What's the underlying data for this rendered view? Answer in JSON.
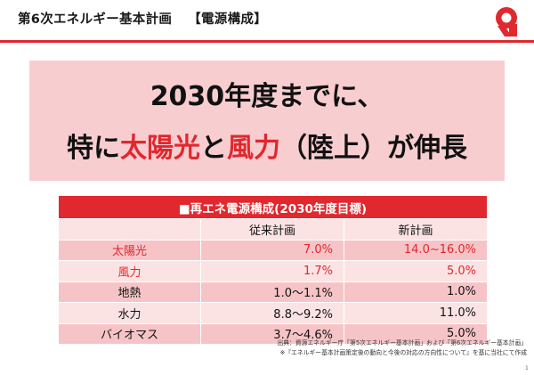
{
  "header": {
    "title": "第6次エネルギー基本計画",
    "section": "【電源構成】",
    "accent_color": "#e0282e"
  },
  "logo": {
    "icon": "brand-logo-icon"
  },
  "headline": {
    "line1": "2030年度までに、",
    "line2_parts": [
      "特に",
      "太陽光",
      "と",
      "風力",
      "（陸上）",
      "が伸長"
    ],
    "highlight_color": "#e0282e"
  },
  "table": {
    "caption": "■再エネ電源構成(2030年度目標)",
    "columns": [
      "",
      "従来計画",
      "新計画"
    ],
    "rows": [
      {
        "label": "太陽光",
        "prev": "7.0%",
        "new": "14.0~16.0%",
        "highlight": true
      },
      {
        "label": "風力",
        "prev": "1.7%",
        "new": "5.0%",
        "highlight": true
      },
      {
        "label": "地熱",
        "prev": "1.0～1.1%",
        "new": "1.0%",
        "highlight": false
      },
      {
        "label": "水力",
        "prev": "8.8～9.2%",
        "new": "11.0%",
        "highlight": false
      },
      {
        "label": "バイオマス",
        "prev": "3.7～4.6%",
        "new": "5.0%",
        "highlight": false
      }
    ]
  },
  "source": {
    "line1": "出典：資源エネルギー庁「第5次エネルギー基本計画」および「第6次エネルギー基本計画」",
    "line2": "※『エネルギー基本計画策定後の動向と今後の対応の方向性について』を基に当社にて作成"
  },
  "page_number": "1"
}
